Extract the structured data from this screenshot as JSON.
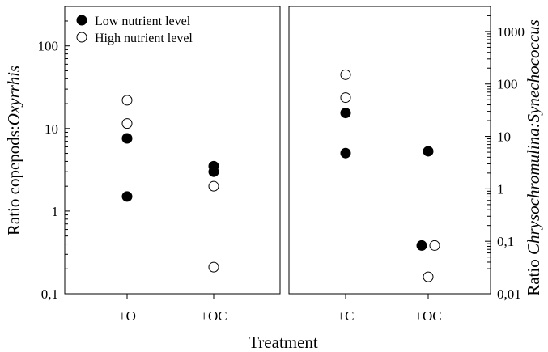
{
  "chart_data": [
    {
      "type": "scatter",
      "panel": "left",
      "y_scale": "log",
      "ylim": [
        0.1,
        300
      ],
      "ylabel": {
        "prefix": "Ratio copepods:",
        "italic": "Oxyrrhis"
      },
      "ytick_labels": [
        "0,1",
        "1",
        "10",
        "100"
      ],
      "ytick_values": [
        0.1,
        1,
        10,
        100
      ],
      "categories": [
        "+O",
        "+OC"
      ],
      "legend": {
        "position": "top-left",
        "entries": [
          {
            "name": "Low nutrient level",
            "marker": "filled"
          },
          {
            "name": "High nutrient level",
            "marker": "open"
          }
        ]
      },
      "series": [
        {
          "name": "Low nutrient level",
          "marker": "filled",
          "points": [
            {
              "x": "+O",
              "y": 7.6
            },
            {
              "x": "+O",
              "y": 1.5
            },
            {
              "x": "+OC",
              "y": 3.5
            },
            {
              "x": "+OC",
              "y": 3.0
            }
          ]
        },
        {
          "name": "High nutrient level",
          "marker": "open",
          "points": [
            {
              "x": "+O",
              "y": 22
            },
            {
              "x": "+O",
              "y": 11.5
            },
            {
              "x": "+OC",
              "y": 2.0
            },
            {
              "x": "+OC",
              "y": 0.21
            }
          ]
        }
      ]
    },
    {
      "type": "scatter",
      "panel": "right",
      "y_scale": "log",
      "ylim": [
        0.01,
        3000
      ],
      "ylabel": {
        "prefix": "Ratio ",
        "italic": "Chrysochromulina:Synechococcus"
      },
      "ytick_labels": [
        "0,01",
        "0,1",
        "1",
        "10",
        "100",
        "1000"
      ],
      "ytick_values": [
        0.01,
        0.1,
        1,
        10,
        100,
        1000
      ],
      "categories": [
        "+C",
        "+OC"
      ],
      "series": [
        {
          "name": "Low nutrient level",
          "marker": "filled",
          "points": [
            {
              "x": "+C",
              "y": 28
            },
            {
              "x": "+C",
              "y": 4.8
            },
            {
              "x": "+OC",
              "y": 5.2
            },
            {
              "x": "+OC",
              "y": 0.083,
              "offset": -1
            }
          ]
        },
        {
          "name": "High nutrient level",
          "marker": "open",
          "points": [
            {
              "x": "+C",
              "y": 150
            },
            {
              "x": "+C",
              "y": 55
            },
            {
              "x": "+OC",
              "y": 0.083,
              "offset": 1
            },
            {
              "x": "+OC",
              "y": 0.021
            }
          ]
        }
      ]
    }
  ],
  "xlabel": "Treatment"
}
